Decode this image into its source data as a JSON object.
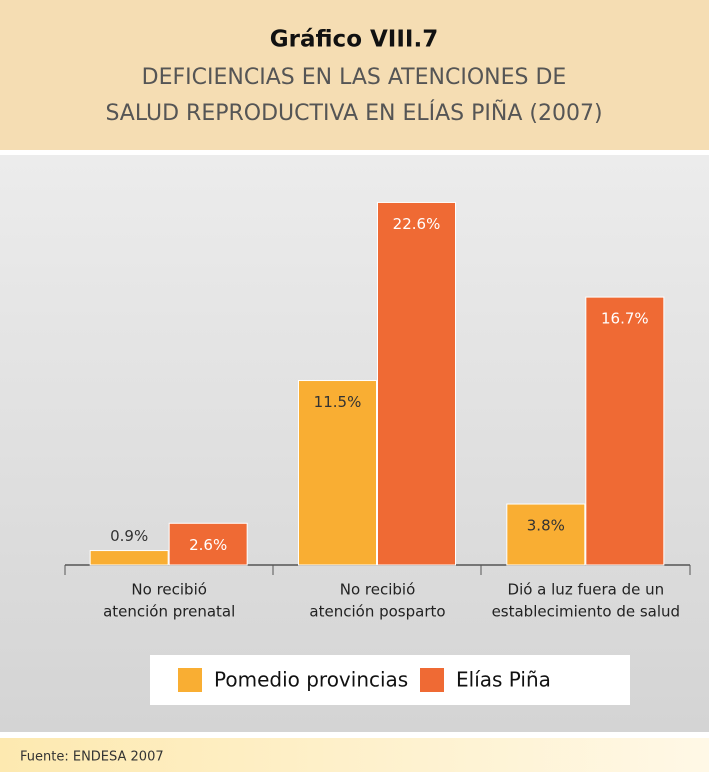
{
  "chart_data": {
    "type": "bar",
    "title": "Gráfico VIII.7",
    "subtitle": [
      "DEFICIENCIAS EN LAS ATENCIONES DE",
      "SALUD REPRODUCTIVA EN ELÍAS PIÑA (2007)"
    ],
    "categories": [
      [
        "No recibió",
        "atención prenatal"
      ],
      [
        "No recibió",
        "atención posparto"
      ],
      [
        "Dió a luz fuera de un",
        "establecimiento de salud"
      ]
    ],
    "series": [
      {
        "name": "Pomedio provincias",
        "color": "#f9ae33",
        "values": [
          0.9,
          11.5,
          3.8
        ],
        "value_labels": [
          "0.9%",
          "11.5%",
          "3.8%"
        ]
      },
      {
        "name": "Elías Piña",
        "color": "#ef6a34",
        "values": [
          2.6,
          22.6,
          16.7
        ],
        "value_labels": [
          "2.6%",
          "22.6%",
          "16.7%"
        ]
      }
    ],
    "ylim": [
      0,
      24
    ],
    "source": "Fuente:  ENDESA 2007"
  }
}
